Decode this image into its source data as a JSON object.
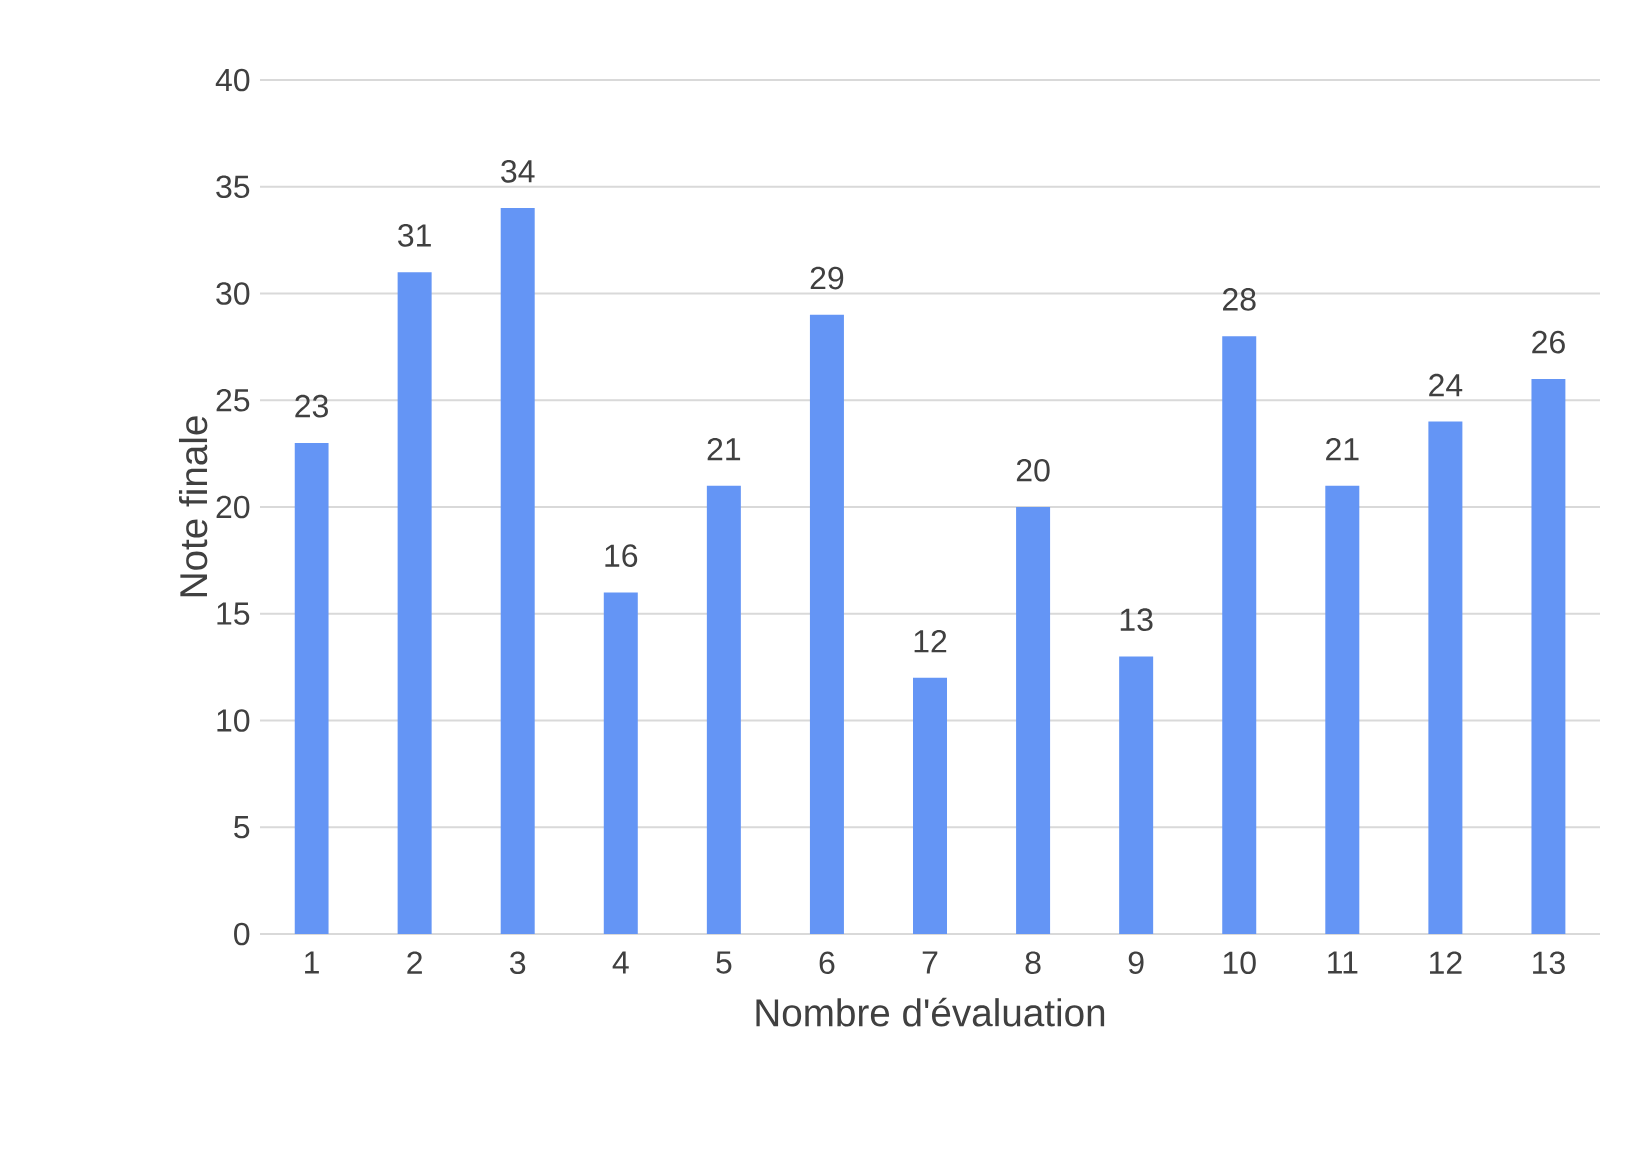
{
  "chart_data": {
    "type": "bar",
    "xlabel": "Nombre d'évaluation",
    "ylabel": "Note finale",
    "categories": [
      "1",
      "2",
      "3",
      "4",
      "5",
      "6",
      "7",
      "8",
      "9",
      "10",
      "11",
      "12",
      "13"
    ],
    "values": [
      23,
      31,
      34,
      16,
      21,
      29,
      12,
      20,
      13,
      28,
      21,
      24,
      26
    ],
    "color": "#6495f5",
    "ylim": [
      0,
      40
    ],
    "yticks": [
      0,
      5,
      10,
      15,
      20,
      25,
      30,
      35,
      40
    ],
    "grid": "y",
    "data_labels": true
  }
}
